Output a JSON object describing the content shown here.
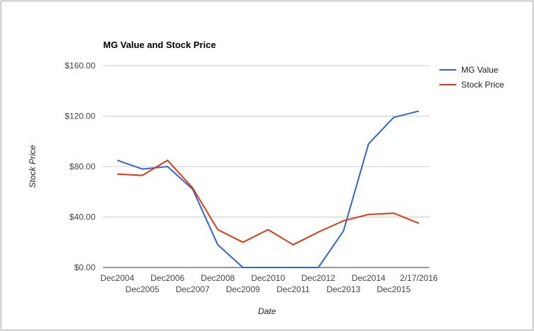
{
  "chart_data": {
    "type": "line",
    "title": "MG Value and Stock Price",
    "xlabel": "Date",
    "ylabel": "Stock Price",
    "categories": [
      "Dec2004",
      "Dec2005",
      "Dec2006",
      "Dec2007",
      "Dec2008",
      "Dec2009",
      "Dec2010",
      "Dec2011",
      "Dec2012",
      "Dec2013",
      "Dec2014",
      "Dec2015",
      "2/17/2016"
    ],
    "y_ticks": [
      "$0.00",
      "$40.00",
      "$80.00",
      "$120.00",
      "$160.00"
    ],
    "ylim": [
      0,
      160
    ],
    "grid": true,
    "legend_position": "right",
    "series": [
      {
        "name": "MG Value",
        "color": "#3366cc",
        "values": [
          85,
          78,
          80,
          62,
          18,
          0,
          0,
          0,
          0,
          29,
          98,
          119,
          124
        ]
      },
      {
        "name": "Stock Price",
        "color": "#dc3912",
        "values": [
          74,
          73,
          85,
          63,
          30,
          20,
          30,
          18,
          28,
          37,
          42,
          43,
          35
        ]
      }
    ]
  }
}
